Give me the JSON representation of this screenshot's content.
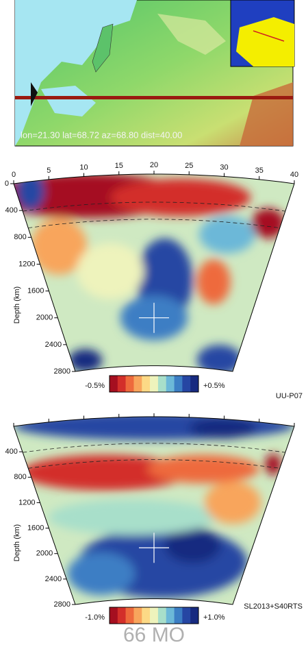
{
  "map": {
    "label": "lon=21.30 lat=68.72 az=68.80 dist=40.00"
  },
  "sections": [
    {
      "distance_ticks": [
        0,
        5,
        10,
        15,
        20,
        25,
        30,
        35,
        40
      ],
      "depth_ticks": [
        0,
        400,
        800,
        1200,
        1600,
        2000,
        2400,
        2800
      ],
      "depth_label": "Depth (km)",
      "colorbar": {
        "min_label": "-0.5%",
        "max_label": "+0.5%"
      },
      "model": "UU-P07"
    },
    {
      "depth_ticks": [
        400,
        800,
        1200,
        1600,
        2000,
        2400,
        2800
      ],
      "depth_label": "Depth (km)",
      "colorbar": {
        "min_label": "-1.0%",
        "max_label": "+1.0%"
      },
      "model": "SL2013+S40RTS"
    }
  ],
  "footer": "66 MO"
}
